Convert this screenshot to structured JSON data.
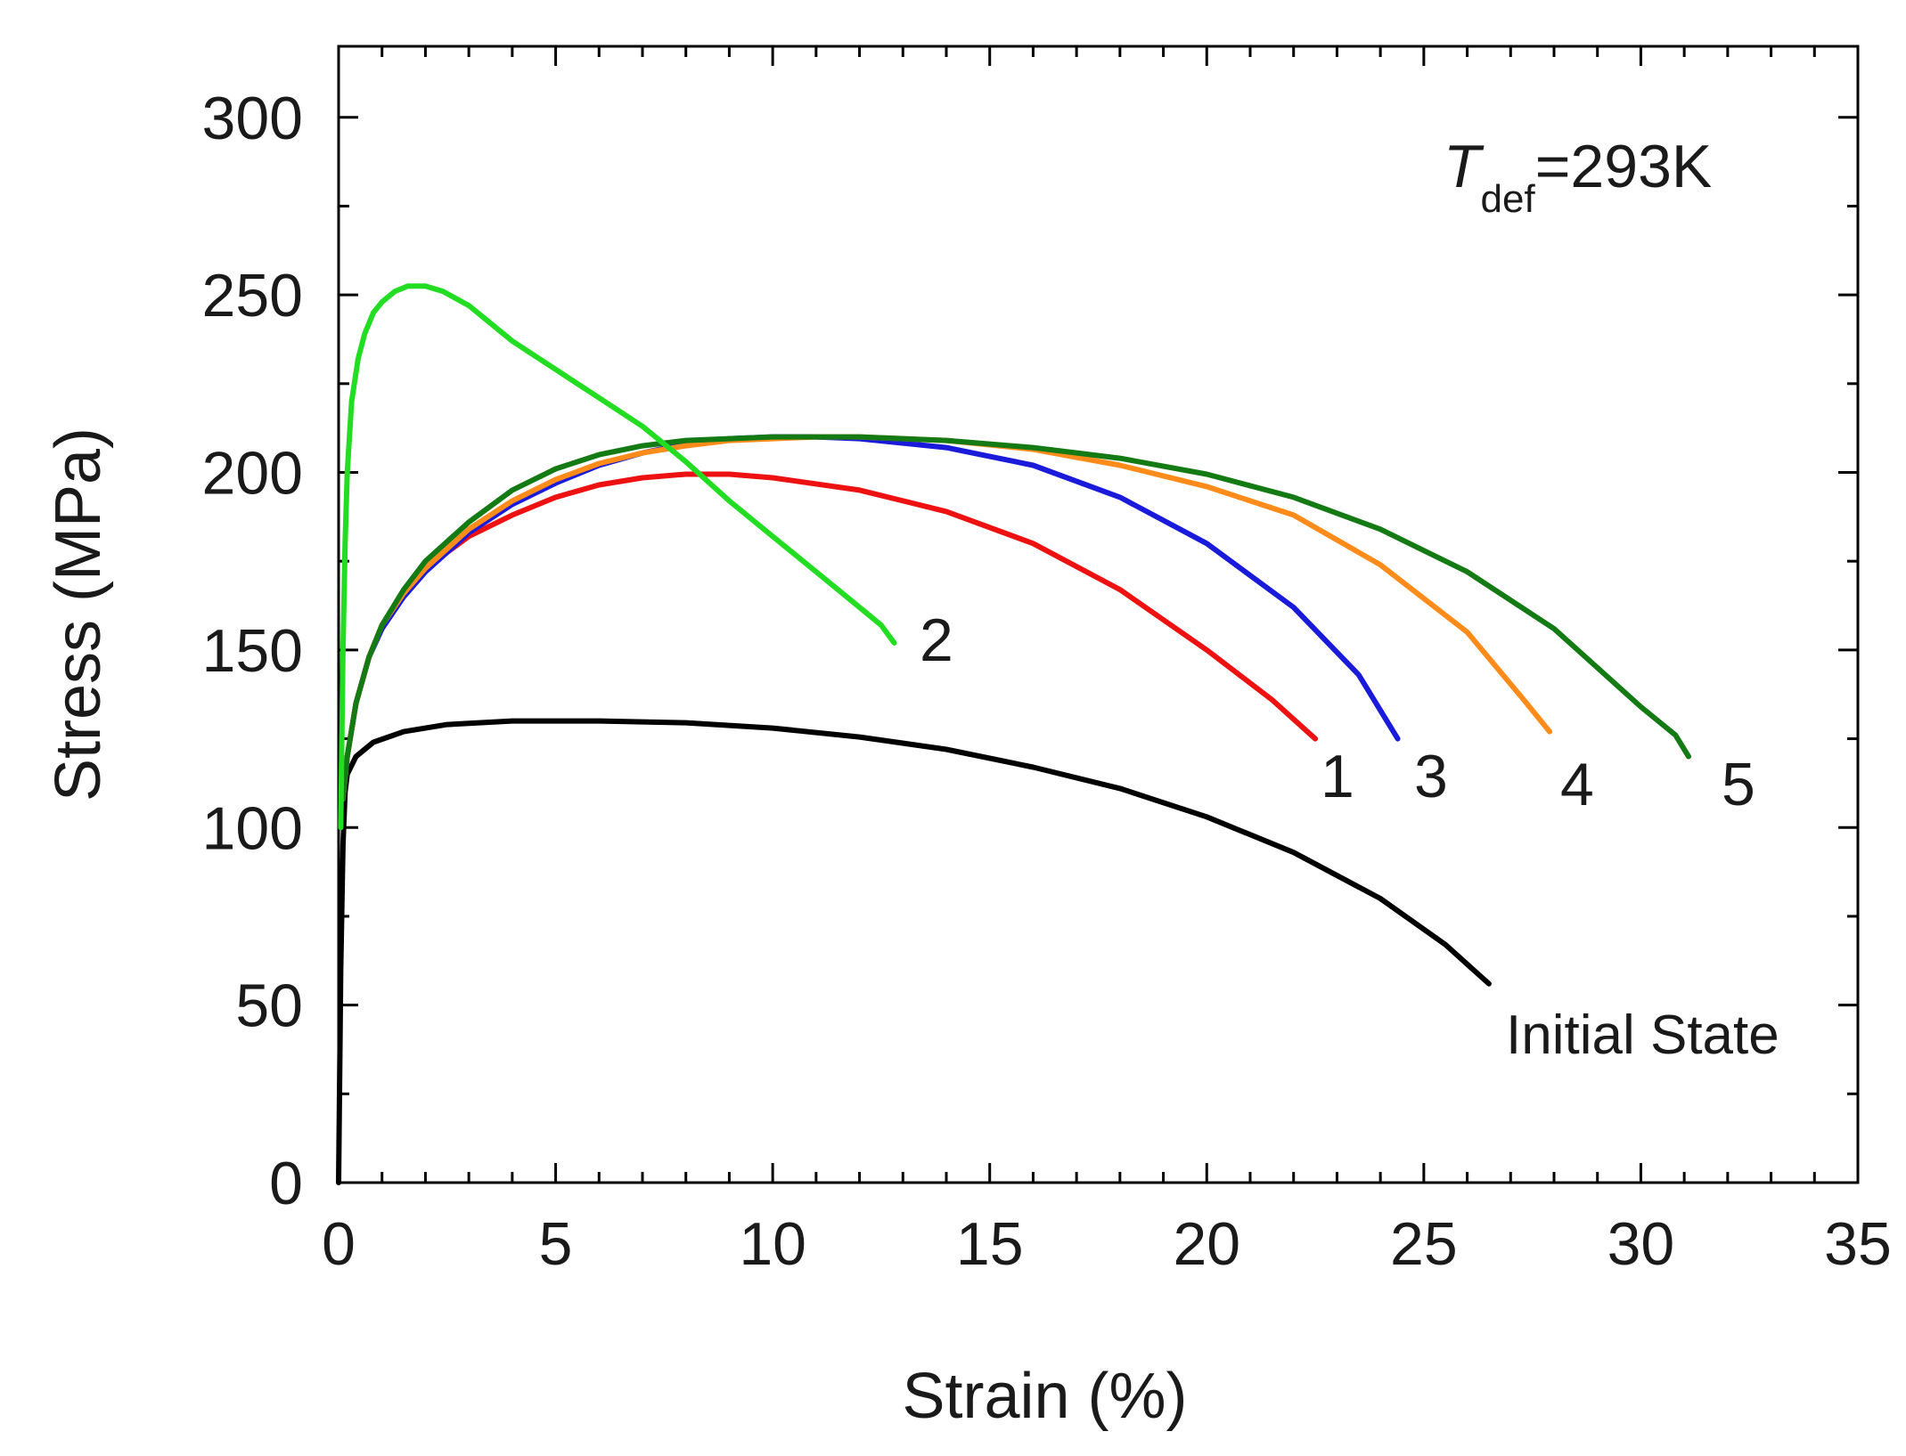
{
  "chart_data": {
    "type": "line",
    "title": "",
    "xlabel": "Strain (%)",
    "ylabel": "Stress (MPa)",
    "xlim": [
      0,
      35
    ],
    "ylim": [
      0,
      320
    ],
    "x_ticks": [
      0,
      5,
      10,
      15,
      20,
      25,
      30,
      35
    ],
    "y_ticks": [
      0,
      50,
      100,
      150,
      200,
      250,
      300
    ],
    "annotation": {
      "main": "T",
      "subscript": "def",
      "rest": "=293K"
    },
    "series": [
      {
        "name": "Initial State",
        "label": "Initial State",
        "color": "#000000",
        "x": [
          0,
          0.05,
          0.1,
          0.15,
          0.2,
          0.4,
          0.8,
          1.5,
          2.5,
          4,
          6,
          8,
          10,
          12,
          14,
          16,
          18,
          20,
          22,
          24,
          25.5,
          26.5
        ],
        "y": [
          0,
          60,
          95,
          110,
          115,
          120,
          124,
          127,
          129,
          130,
          130,
          129.5,
          128,
          125.5,
          122,
          117,
          111,
          103,
          93,
          80,
          67,
          56
        ]
      },
      {
        "name": "1",
        "label": "1",
        "color": "#ee1111",
        "x": [
          0.1,
          0.2,
          0.4,
          0.7,
          1,
          1.5,
          2,
          3,
          4,
          5,
          6,
          7,
          8,
          9,
          10,
          12,
          14,
          16,
          18,
          20,
          21.5,
          22.5
        ],
        "y": [
          108,
          120,
          135,
          148,
          157,
          166,
          173,
          182,
          188,
          193,
          196.5,
          198.5,
          199.5,
          199.5,
          198.5,
          195,
          189,
          180,
          167,
          150,
          136,
          125
        ]
      },
      {
        "name": "2",
        "label": "2",
        "color": "#22dd22",
        "x": [
          0.05,
          0.1,
          0.15,
          0.2,
          0.3,
          0.45,
          0.6,
          0.8,
          1,
          1.3,
          1.6,
          2,
          2.4,
          3,
          3.5,
          4,
          5,
          6,
          7,
          8,
          9,
          10,
          11,
          12,
          12.5,
          12.8
        ],
        "y": [
          100,
          150,
          180,
          200,
          220,
          232,
          239,
          245,
          248,
          251,
          252.5,
          252.5,
          251,
          247,
          242,
          237,
          229,
          221,
          213,
          203,
          192,
          182,
          172,
          162,
          157,
          152
        ]
      },
      {
        "name": "3",
        "label": "3",
        "color": "#1a1adb",
        "x": [
          0.1,
          0.2,
          0.4,
          0.7,
          1,
          1.5,
          2,
          3,
          4,
          5,
          6,
          7,
          8,
          9,
          10,
          11,
          12,
          14,
          16,
          18,
          20,
          22,
          23.5,
          24.4
        ],
        "y": [
          108,
          120,
          135,
          148,
          156,
          165,
          172,
          183,
          191,
          197,
          202,
          205.5,
          208,
          209.5,
          210,
          210,
          209.5,
          207,
          202,
          193,
          180,
          162,
          143,
          125
        ]
      },
      {
        "name": "4",
        "label": "4",
        "color": "#ff8c1a",
        "x": [
          0.1,
          0.2,
          0.4,
          0.7,
          1,
          1.5,
          2,
          3,
          4,
          5,
          6,
          7,
          8,
          9,
          10,
          11,
          12,
          14,
          16,
          18,
          20,
          22,
          24,
          26,
          27.3,
          27.9
        ],
        "y": [
          108,
          120,
          135,
          148,
          157,
          166,
          173,
          184,
          192,
          198,
          202.5,
          205.5,
          207.5,
          209,
          209.5,
          210,
          210,
          209,
          206.5,
          202,
          196,
          188,
          174,
          155,
          136,
          127
        ]
      },
      {
        "name": "5",
        "label": "5",
        "color": "#147a14",
        "x": [
          0.1,
          0.2,
          0.4,
          0.7,
          1,
          1.5,
          2,
          3,
          4,
          5,
          6,
          7,
          8,
          9,
          10,
          11,
          12,
          14,
          16,
          18,
          20,
          22,
          24,
          26,
          28,
          30,
          30.8,
          31.1
        ],
        "y": [
          108,
          120,
          135,
          148,
          157,
          167,
          175,
          186,
          195,
          201,
          205,
          207.5,
          209,
          209.5,
          210,
          210,
          210,
          209,
          207,
          204,
          199.5,
          193,
          184,
          172,
          156,
          134,
          126,
          120
        ]
      }
    ]
  }
}
